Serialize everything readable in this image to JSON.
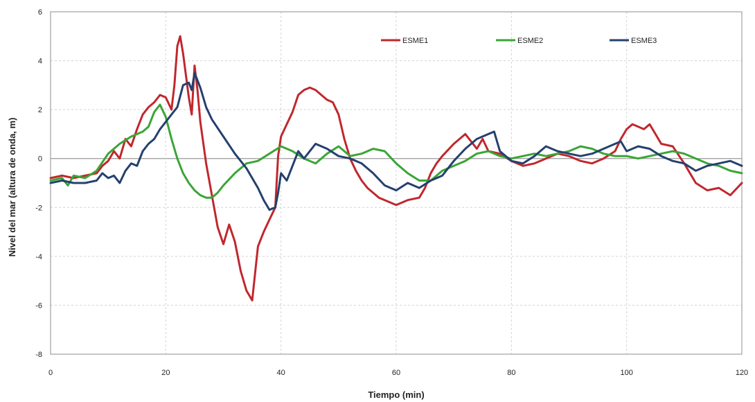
{
  "chart_data": {
    "type": "line",
    "title": "",
    "xlabel": "Tiempo (min)",
    "ylabel": "Nivel del mar (altura de onda, m)",
    "xlim": [
      0,
      120
    ],
    "ylim": [
      -8,
      6
    ],
    "x_ticks": [
      "0",
      "20",
      "40",
      "60",
      "80",
      "100",
      "120"
    ],
    "y_ticks": [
      "6",
      "4",
      "2",
      "0",
      "-2",
      "-4",
      "-6",
      "-8"
    ],
    "grid": "dashed",
    "legend_position": "top-right",
    "series": [
      {
        "name": "ESME1",
        "color": "#c0272d",
        "points": [
          [
            0,
            -0.8
          ],
          [
            2,
            -0.7
          ],
          [
            4,
            -0.8
          ],
          [
            6,
            -0.7
          ],
          [
            8,
            -0.6
          ],
          [
            9,
            -0.3
          ],
          [
            10,
            -0.1
          ],
          [
            11,
            0.3
          ],
          [
            12,
            0.0
          ],
          [
            13,
            0.8
          ],
          [
            14,
            0.5
          ],
          [
            15,
            1.2
          ],
          [
            16,
            1.8
          ],
          [
            17,
            2.1
          ],
          [
            18,
            2.3
          ],
          [
            19,
            2.6
          ],
          [
            20,
            2.5
          ],
          [
            21,
            2.0
          ],
          [
            21.5,
            3.0
          ],
          [
            22,
            4.6
          ],
          [
            22.5,
            5.0
          ],
          [
            23,
            4.3
          ],
          [
            24,
            2.5
          ],
          [
            24.5,
            1.8
          ],
          [
            25,
            3.8
          ],
          [
            25.5,
            2.8
          ],
          [
            26,
            1.5
          ],
          [
            27,
            -0.2
          ],
          [
            28,
            -1.5
          ],
          [
            29,
            -2.8
          ],
          [
            30,
            -3.5
          ],
          [
            31,
            -2.7
          ],
          [
            32,
            -3.4
          ],
          [
            33,
            -4.6
          ],
          [
            34,
            -5.4
          ],
          [
            35,
            -5.8
          ],
          [
            36,
            -3.6
          ],
          [
            37,
            -3.0
          ],
          [
            38,
            -2.5
          ],
          [
            39,
            -2.0
          ],
          [
            39.5,
            0.1
          ],
          [
            40,
            0.9
          ],
          [
            41,
            1.4
          ],
          [
            42,
            1.9
          ],
          [
            43,
            2.6
          ],
          [
            44,
            2.8
          ],
          [
            45,
            2.9
          ],
          [
            46,
            2.8
          ],
          [
            47,
            2.6
          ],
          [
            48,
            2.4
          ],
          [
            49,
            2.3
          ],
          [
            50,
            1.8
          ],
          [
            51,
            0.8
          ],
          [
            52,
            0.0
          ],
          [
            53,
            -0.5
          ],
          [
            54,
            -0.9
          ],
          [
            55,
            -1.2
          ],
          [
            56,
            -1.4
          ],
          [
            57,
            -1.6
          ],
          [
            58,
            -1.7
          ],
          [
            60,
            -1.9
          ],
          [
            62,
            -1.7
          ],
          [
            64,
            -1.6
          ],
          [
            65,
            -1.2
          ],
          [
            66,
            -0.6
          ],
          [
            67,
            -0.2
          ],
          [
            68,
            0.1
          ],
          [
            70,
            0.6
          ],
          [
            72,
            1.0
          ],
          [
            73,
            0.7
          ],
          [
            74,
            0.4
          ],
          [
            75,
            0.8
          ],
          [
            76,
            0.3
          ],
          [
            78,
            0.2
          ],
          [
            80,
            -0.1
          ],
          [
            82,
            -0.3
          ],
          [
            84,
            -0.2
          ],
          [
            86,
            0.0
          ],
          [
            88,
            0.2
          ],
          [
            90,
            0.1
          ],
          [
            92,
            -0.1
          ],
          [
            94,
            -0.2
          ],
          [
            96,
            0.0
          ],
          [
            98,
            0.3
          ],
          [
            99,
            0.8
          ],
          [
            100,
            1.2
          ],
          [
            101,
            1.4
          ],
          [
            102,
            1.3
          ],
          [
            103,
            1.2
          ],
          [
            104,
            1.4
          ],
          [
            105,
            1.0
          ],
          [
            106,
            0.6
          ],
          [
            108,
            0.5
          ],
          [
            110,
            -0.2
          ],
          [
            112,
            -1.0
          ],
          [
            114,
            -1.3
          ],
          [
            116,
            -1.2
          ],
          [
            118,
            -1.5
          ],
          [
            120,
            -1.0
          ]
        ]
      },
      {
        "name": "ESME2",
        "color": "#3aa536",
        "points": [
          [
            0,
            -0.9
          ],
          [
            2,
            -0.8
          ],
          [
            3,
            -1.1
          ],
          [
            4,
            -0.7
          ],
          [
            6,
            -0.8
          ],
          [
            8,
            -0.5
          ],
          [
            10,
            0.2
          ],
          [
            12,
            0.6
          ],
          [
            14,
            0.9
          ],
          [
            16,
            1.1
          ],
          [
            17,
            1.3
          ],
          [
            18,
            1.9
          ],
          [
            19,
            2.2
          ],
          [
            20,
            1.7
          ],
          [
            21,
            0.8
          ],
          [
            22,
            0.0
          ],
          [
            23,
            -0.6
          ],
          [
            24,
            -1.0
          ],
          [
            25,
            -1.3
          ],
          [
            26,
            -1.5
          ],
          [
            27,
            -1.6
          ],
          [
            28,
            -1.6
          ],
          [
            29,
            -1.4
          ],
          [
            30,
            -1.1
          ],
          [
            32,
            -0.6
          ],
          [
            34,
            -0.2
          ],
          [
            36,
            -0.1
          ],
          [
            38,
            0.2
          ],
          [
            40,
            0.5
          ],
          [
            42,
            0.3
          ],
          [
            44,
            0.0
          ],
          [
            46,
            -0.2
          ],
          [
            48,
            0.2
          ],
          [
            50,
            0.5
          ],
          [
            52,
            0.1
          ],
          [
            54,
            0.2
          ],
          [
            56,
            0.4
          ],
          [
            58,
            0.3
          ],
          [
            60,
            -0.2
          ],
          [
            62,
            -0.6
          ],
          [
            64,
            -0.9
          ],
          [
            66,
            -0.9
          ],
          [
            68,
            -0.5
          ],
          [
            70,
            -0.3
          ],
          [
            72,
            -0.1
          ],
          [
            74,
            0.2
          ],
          [
            76,
            0.3
          ],
          [
            78,
            0.1
          ],
          [
            80,
            0.0
          ],
          [
            82,
            0.1
          ],
          [
            84,
            0.2
          ],
          [
            86,
            0.1
          ],
          [
            88,
            0.2
          ],
          [
            90,
            0.3
          ],
          [
            92,
            0.5
          ],
          [
            94,
            0.4
          ],
          [
            96,
            0.2
          ],
          [
            98,
            0.1
          ],
          [
            100,
            0.1
          ],
          [
            102,
            0.0
          ],
          [
            104,
            0.1
          ],
          [
            106,
            0.2
          ],
          [
            108,
            0.3
          ],
          [
            110,
            0.2
          ],
          [
            112,
            0.0
          ],
          [
            114,
            -0.2
          ],
          [
            116,
            -0.3
          ],
          [
            118,
            -0.5
          ],
          [
            120,
            -0.6
          ]
        ]
      },
      {
        "name": "ESME3",
        "color": "#24406e",
        "points": [
          [
            0,
            -1.0
          ],
          [
            2,
            -0.9
          ],
          [
            4,
            -1.0
          ],
          [
            6,
            -1.0
          ],
          [
            8,
            -0.9
          ],
          [
            9,
            -0.6
          ],
          [
            10,
            -0.8
          ],
          [
            11,
            -0.7
          ],
          [
            12,
            -1.0
          ],
          [
            13,
            -0.5
          ],
          [
            14,
            -0.2
          ],
          [
            15,
            -0.3
          ],
          [
            16,
            0.3
          ],
          [
            17,
            0.6
          ],
          [
            18,
            0.8
          ],
          [
            19,
            1.2
          ],
          [
            20,
            1.5
          ],
          [
            21,
            1.8
          ],
          [
            22,
            2.1
          ],
          [
            23,
            3.0
          ],
          [
            24,
            3.1
          ],
          [
            24.5,
            2.8
          ],
          [
            25,
            3.5
          ],
          [
            26,
            2.9
          ],
          [
            27,
            2.1
          ],
          [
            28,
            1.6
          ],
          [
            30,
            0.9
          ],
          [
            32,
            0.2
          ],
          [
            34,
            -0.4
          ],
          [
            36,
            -1.2
          ],
          [
            37,
            -1.7
          ],
          [
            38,
            -2.1
          ],
          [
            39,
            -2.0
          ],
          [
            39.5,
            -1.4
          ],
          [
            40,
            -0.6
          ],
          [
            41,
            -0.9
          ],
          [
            42,
            -0.3
          ],
          [
            43,
            0.3
          ],
          [
            44,
            0.0
          ],
          [
            45,
            0.3
          ],
          [
            46,
            0.6
          ],
          [
            48,
            0.4
          ],
          [
            50,
            0.1
          ],
          [
            52,
            0.0
          ],
          [
            54,
            -0.2
          ],
          [
            56,
            -0.6
          ],
          [
            58,
            -1.1
          ],
          [
            60,
            -1.3
          ],
          [
            62,
            -1.0
          ],
          [
            64,
            -1.2
          ],
          [
            66,
            -0.9
          ],
          [
            68,
            -0.7
          ],
          [
            70,
            -0.1
          ],
          [
            72,
            0.4
          ],
          [
            74,
            0.8
          ],
          [
            76,
            1.0
          ],
          [
            77,
            1.1
          ],
          [
            78,
            0.3
          ],
          [
            80,
            -0.1
          ],
          [
            82,
            -0.2
          ],
          [
            84,
            0.1
          ],
          [
            86,
            0.5
          ],
          [
            88,
            0.3
          ],
          [
            90,
            0.2
          ],
          [
            92,
            0.1
          ],
          [
            94,
            0.2
          ],
          [
            96,
            0.4
          ],
          [
            98,
            0.6
          ],
          [
            99,
            0.7
          ],
          [
            100,
            0.3
          ],
          [
            102,
            0.5
          ],
          [
            104,
            0.4
          ],
          [
            106,
            0.1
          ],
          [
            108,
            -0.1
          ],
          [
            110,
            -0.2
          ],
          [
            112,
            -0.5
          ],
          [
            114,
            -0.3
          ],
          [
            116,
            -0.2
          ],
          [
            118,
            -0.1
          ],
          [
            120,
            -0.3
          ]
        ]
      }
    ]
  }
}
